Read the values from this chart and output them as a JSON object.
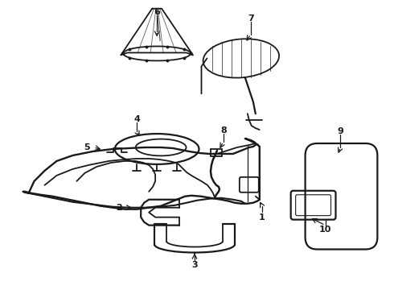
{
  "background_color": "#ffffff",
  "line_color": "#1a1a1a",
  "line_width": 1.3,
  "figure_width": 4.9,
  "figure_height": 3.6,
  "dpi": 100
}
